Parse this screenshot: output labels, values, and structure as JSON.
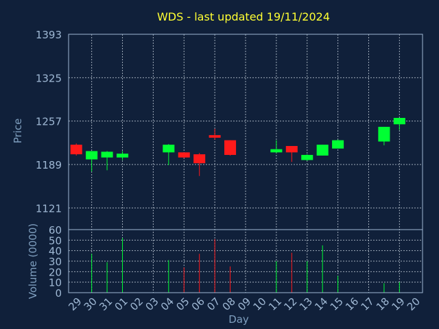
{
  "chart_data": {
    "type": "candlestick",
    "title": "WDS - last updated 19/11/2024",
    "xlabel": "Day",
    "price_panel": {
      "ylabel": "Price",
      "yticks": [
        "1121",
        "1189",
        "1257",
        "1325",
        "1393"
      ],
      "ylim": [
        1087,
        1393
      ]
    },
    "volume_panel": {
      "ylabel": "Volume (0000)",
      "yticks": [
        "0",
        "10",
        "20",
        "30",
        "40",
        "50",
        "60"
      ],
      "ylim": [
        0,
        60
      ]
    },
    "days": [
      "29",
      "30",
      "31",
      "01",
      "02",
      "03",
      "04",
      "05",
      "06",
      "07",
      "08",
      "09",
      "10",
      "11",
      "12",
      "13",
      "14",
      "15",
      "16",
      "17",
      "18",
      "19",
      "20"
    ],
    "candles": [
      {
        "day": "29",
        "open": 1220,
        "high": 1222,
        "low": 1203,
        "close": 1205,
        "volume": null,
        "color": "red"
      },
      {
        "day": "30",
        "open": 1197,
        "high": 1210,
        "low": 1178,
        "close": 1210,
        "volume": 37,
        "color": "green"
      },
      {
        "day": "31",
        "open": 1200,
        "high": 1210,
        "low": 1180,
        "close": 1209,
        "volume": 29,
        "color": "green"
      },
      {
        "day": "01",
        "open": 1200,
        "high": 1210,
        "low": 1196,
        "close": 1206,
        "volume": 52,
        "color": "green"
      },
      {
        "day": "04",
        "open": 1208,
        "high": 1221,
        "low": 1188,
        "close": 1220,
        "volume": 31,
        "color": "green"
      },
      {
        "day": "05",
        "open": 1208,
        "high": 1208,
        "low": 1199,
        "close": 1200,
        "volume": 24,
        "color": "red"
      },
      {
        "day": "06",
        "open": 1205,
        "high": 1207,
        "low": 1171,
        "close": 1191,
        "volume": 37,
        "color": "red"
      },
      {
        "day": "07",
        "open": 1235,
        "high": 1245,
        "low": 1228,
        "close": 1231,
        "volume": 51,
        "color": "red"
      },
      {
        "day": "08",
        "open": 1227,
        "high": 1227,
        "low": 1203,
        "close": 1204,
        "volume": 25,
        "color": "red"
      },
      {
        "day": "11",
        "open": 1208,
        "high": 1227,
        "low": 1207,
        "close": 1213,
        "volume": 30,
        "color": "green"
      },
      {
        "day": "12",
        "open": 1218,
        "high": 1218,
        "low": 1193,
        "close": 1208,
        "volume": 38,
        "color": "red"
      },
      {
        "day": "13",
        "open": 1196,
        "high": 1205,
        "low": 1195,
        "close": 1204,
        "volume": 30,
        "color": "green"
      },
      {
        "day": "14",
        "open": 1203,
        "high": 1220,
        "low": 1203,
        "close": 1220,
        "volume": 45,
        "color": "green"
      },
      {
        "day": "15",
        "open": 1214,
        "high": 1228,
        "low": 1214,
        "close": 1227,
        "volume": 16,
        "color": "green"
      },
      {
        "day": "18",
        "open": 1225,
        "high": 1248,
        "low": 1219,
        "close": 1248,
        "volume": 9,
        "color": "green"
      },
      {
        "day": "19",
        "open": 1252,
        "high": 1262,
        "low": 1243,
        "close": 1262,
        "volume": 10,
        "color": "green"
      }
    ],
    "colors": {
      "up": "#00ff33",
      "down": "#ff1a1a",
      "background": "#10203a",
      "text": "#9fb8d4",
      "title": "#ffff33"
    },
    "grid": true
  }
}
